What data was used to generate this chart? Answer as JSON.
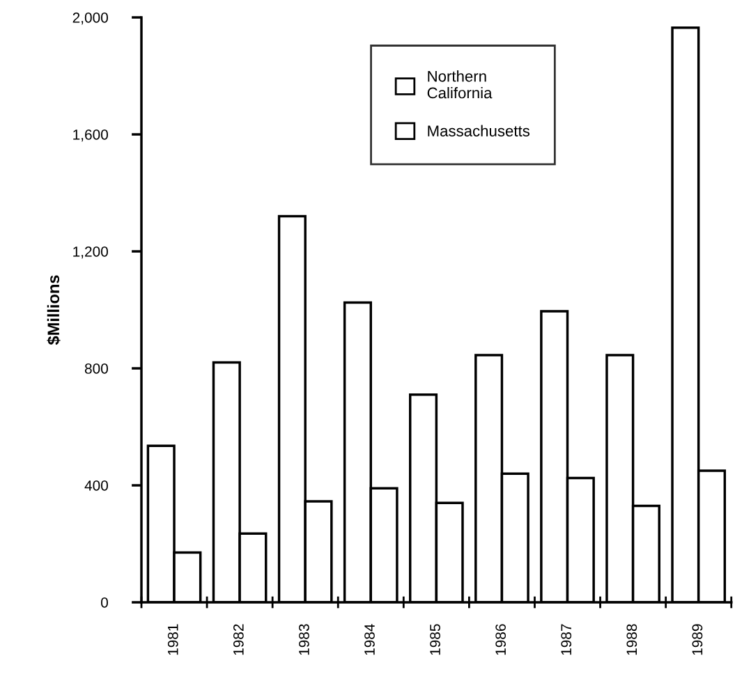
{
  "chart_data": {
    "type": "bar",
    "ylabel": "$Millions",
    "categories": [
      "1981",
      "1982",
      "1983",
      "1984",
      "1985",
      "1986",
      "1987",
      "1988",
      "1989"
    ],
    "series": [
      {
        "name": "Northern\nCalifornia",
        "color": "#ffffff",
        "values": [
          535,
          820,
          1320,
          1025,
          710,
          845,
          995,
          845,
          1965
        ]
      },
      {
        "name": "Massachusetts",
        "color": "#ffffff",
        "values": [
          170,
          235,
          345,
          390,
          340,
          440,
          425,
          330,
          450
        ]
      }
    ],
    "ylim": [
      0,
      2000
    ],
    "yticks": [
      0,
      400,
      800,
      {
        "value": 1200,
        "label": "1,200"
      },
      {
        "value": 1600,
        "label": "1,600"
      },
      {
        "value": 2000,
        "label": "2,000"
      }
    ],
    "grid": false,
    "legend": "top"
  }
}
